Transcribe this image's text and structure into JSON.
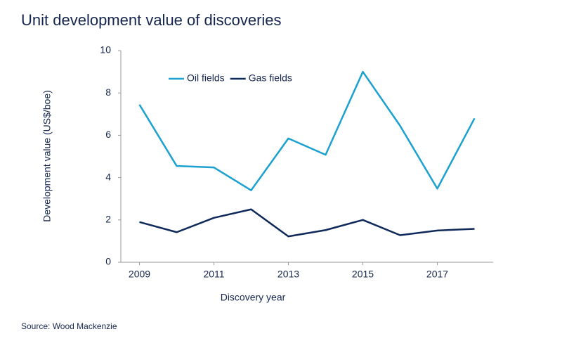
{
  "chart_data": {
    "type": "line",
    "title": "Unit development value of discoveries",
    "x_label": "Discovery year",
    "y_label": "Development value (US$/boe)",
    "source": "Source: Wood Mackenzie",
    "x": [
      2009,
      2010,
      2011,
      2012,
      2013,
      2014,
      2015,
      2016,
      2017,
      2018
    ],
    "series": [
      {
        "name": "Oil fields",
        "color": "#1ba1d0",
        "values": [
          7.45,
          4.55,
          4.48,
          3.4,
          5.85,
          5.08,
          9.0,
          6.45,
          3.48,
          6.8
        ]
      },
      {
        "name": "Gas fields",
        "color": "#0f2a5a",
        "values": [
          1.9,
          1.42,
          2.1,
          2.5,
          1.22,
          1.52,
          2.0,
          1.28,
          1.5,
          1.58
        ]
      }
    ],
    "xlim": [
      2008.5,
      2018.5
    ],
    "xticks": [
      2009,
      2011,
      2013,
      2015,
      2017
    ],
    "ylim": [
      0,
      10
    ],
    "yticks": [
      0,
      2,
      4,
      6,
      8,
      10
    ],
    "grid": false,
    "legend": "top"
  }
}
